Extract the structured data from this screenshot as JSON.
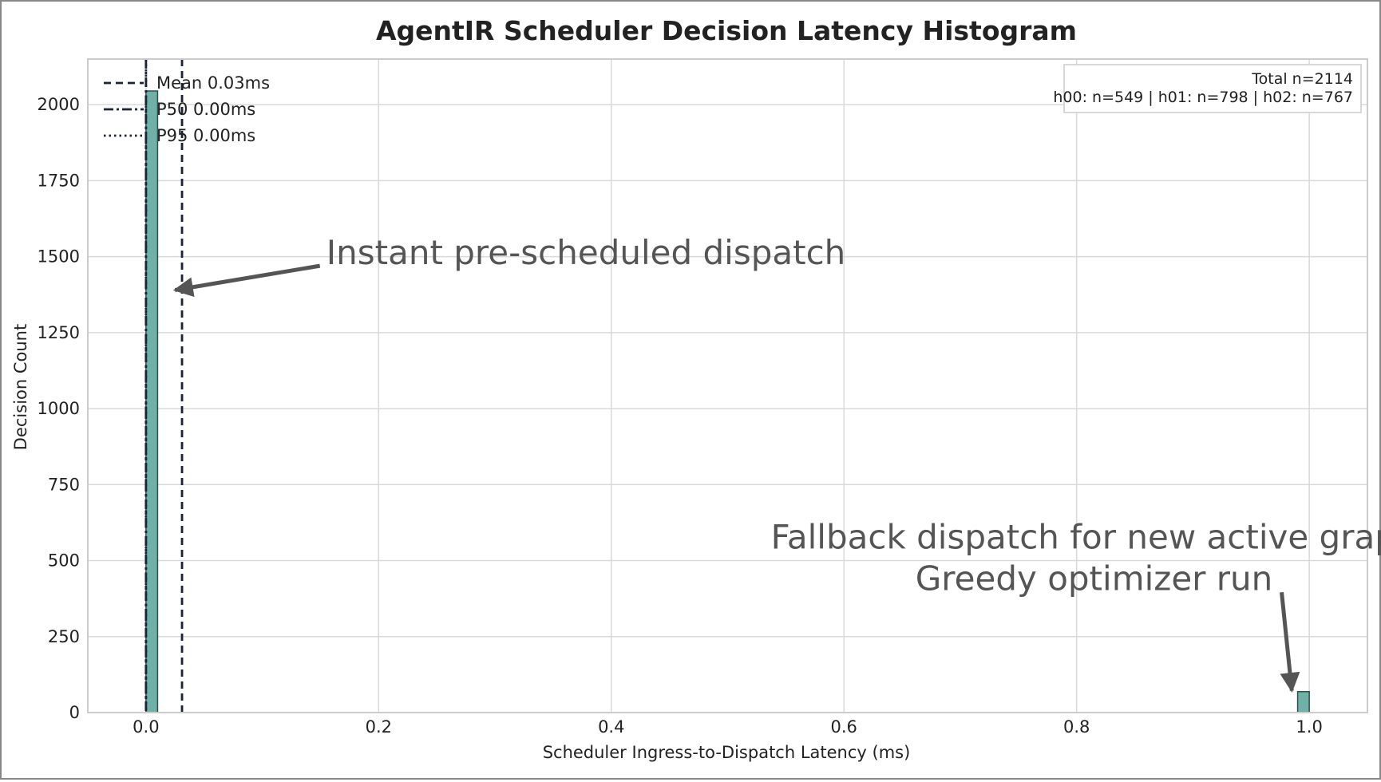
{
  "chart_data": {
    "type": "bar",
    "title": "AgentIR Scheduler Decision Latency Histogram",
    "xlabel": "Scheduler Ingress-to-Dispatch Latency (ms)",
    "ylabel": "Decision Count",
    "xlim": [
      -0.05,
      1.05
    ],
    "ylim": [
      0,
      2150
    ],
    "x_ticks": [
      {
        "value": 0.0,
        "label": "0.0"
      },
      {
        "value": 0.2,
        "label": "0.2"
      },
      {
        "value": 0.4,
        "label": "0.4"
      },
      {
        "value": 0.6,
        "label": "0.6"
      },
      {
        "value": 0.8,
        "label": "0.8"
      },
      {
        "value": 1.0,
        "label": "1.0"
      }
    ],
    "y_ticks": [
      {
        "value": 0,
        "label": "0"
      },
      {
        "value": 250,
        "label": "250"
      },
      {
        "value": 500,
        "label": "500"
      },
      {
        "value": 750,
        "label": "750"
      },
      {
        "value": 1000,
        "label": "1000"
      },
      {
        "value": 1250,
        "label": "1250"
      },
      {
        "value": 1500,
        "label": "1500"
      },
      {
        "value": 1750,
        "label": "1750"
      },
      {
        "value": 2000,
        "label": "2000"
      }
    ],
    "bins": [
      {
        "x0": 0.0,
        "x1": 0.01,
        "count": 2045
      },
      {
        "x0": 0.99,
        "x1": 1.0,
        "count": 69
      }
    ],
    "bar_color": "#6fb1a6",
    "bar_edge_color": "#2f4f4f",
    "reference_lines": [
      {
        "label": "Mean 0.03ms",
        "value": 0.031,
        "style": "dashed",
        "color": "#1c2238"
      },
      {
        "label": "P50 0.00ms",
        "value": 0.0,
        "style": "dashdot",
        "color": "#1c2238"
      },
      {
        "label": "P95 0.00ms",
        "value": 0.0,
        "style": "dotted",
        "color": "#1c2238"
      }
    ],
    "legend_position": "top-left",
    "stats_box": {
      "line1": "Total n=2114",
      "line2": "h00: n=549 | h01: n=798 | h02: n=767",
      "position": "top-right"
    },
    "annotations": [
      {
        "lines": [
          "Instant pre-scheduled dispatch"
        ],
        "arrow_to": {
          "x": 0.025,
          "y": 1390
        },
        "text_at": {
          "x": 0.155,
          "y": 1475
        },
        "align": "left"
      },
      {
        "lines": [
          "Fallback dispatch for new active graph",
          "Greedy optimizer run"
        ],
        "arrow_to": {
          "x": 0.985,
          "y": 72
        },
        "text_at": {
          "x": 0.815,
          "y": 540
        },
        "align": "center"
      }
    ],
    "grid": true,
    "annotation_color": "#555555"
  }
}
